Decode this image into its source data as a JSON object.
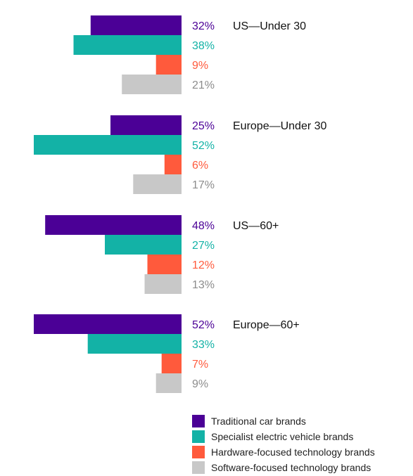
{
  "chart_data": {
    "type": "bar",
    "orientation": "horizontal",
    "xlim": [
      0,
      52
    ],
    "groups": [
      {
        "label": "US—Under 30",
        "values": [
          {
            "series": "Traditional car brands",
            "value": 32,
            "label": "32%"
          },
          {
            "series": "Specialist electric vehicle brands",
            "value": 38,
            "label": "38%"
          },
          {
            "series": "Hardware-focused technology brands",
            "value": 9,
            "label": "9%"
          },
          {
            "series": "Software-focused technology brands",
            "value": 21,
            "label": "21%"
          }
        ]
      },
      {
        "label": "Europe—Under 30",
        "values": [
          {
            "series": "Traditional car brands",
            "value": 25,
            "label": "25%"
          },
          {
            "series": "Specialist electric vehicle brands",
            "value": 52,
            "label": "52%"
          },
          {
            "series": "Hardware-focused technology brands",
            "value": 6,
            "label": "6%"
          },
          {
            "series": "Software-focused technology brands",
            "value": 17,
            "label": "17%"
          }
        ]
      },
      {
        "label": "US—60+",
        "values": [
          {
            "series": "Traditional car brands",
            "value": 48,
            "label": "48%"
          },
          {
            "series": "Specialist electric vehicle brands",
            "value": 27,
            "label": "27%"
          },
          {
            "series": "Hardware-focused technology brands",
            "value": 12,
            "label": "12%"
          },
          {
            "series": "Software-focused technology brands",
            "value": 13,
            "label": "13%"
          }
        ]
      },
      {
        "label": "Europe—60+",
        "values": [
          {
            "series": "Traditional car brands",
            "value": 52,
            "label": "52%"
          },
          {
            "series": "Specialist electric vehicle brands",
            "value": 33,
            "label": "33%"
          },
          {
            "series": "Hardware-focused technology brands",
            "value": 7,
            "label": "7%"
          },
          {
            "series": "Software-focused technology brands",
            "value": 9,
            "label": "9%"
          }
        ]
      }
    ],
    "series": [
      {
        "name": "Traditional car brands",
        "color": "#4b0096",
        "label_color": "#4b0096"
      },
      {
        "name": "Specialist electric vehicle brands",
        "color": "#13b2a6",
        "label_color": "#13b2a6"
      },
      {
        "name": "Hardware-focused technology brands",
        "color": "#ff5a3c",
        "label_color": "#ff5a3c"
      },
      {
        "name": "Software-focused technology brands",
        "color": "#c8c8c8",
        "label_color": "#8c8c8c"
      }
    ],
    "legend": {
      "position": "bottom-right",
      "items": [
        {
          "label": "Traditional car brands",
          "color": "#4b0096"
        },
        {
          "label": "Specialist electric vehicle brands",
          "color": "#13b2a6"
        },
        {
          "label": "Hardware-focused technology brands",
          "color": "#ff5a3c"
        },
        {
          "label": "Software-focused technology brands",
          "color": "#c8c8c8"
        }
      ]
    },
    "grid": false
  }
}
